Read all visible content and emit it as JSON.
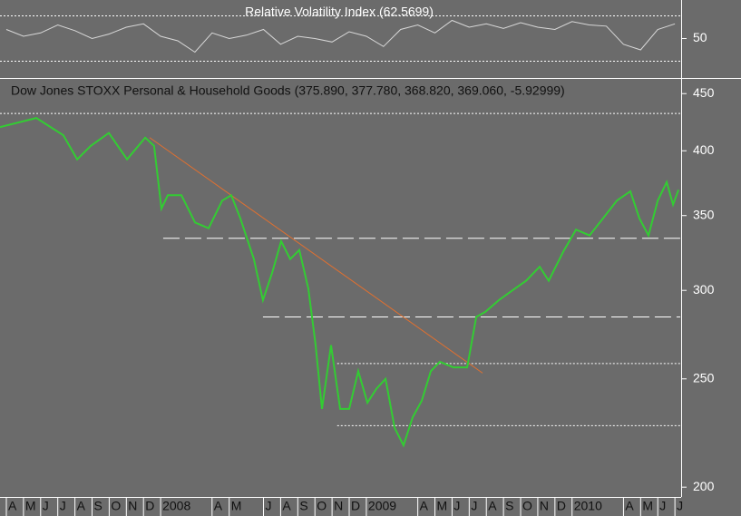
{
  "chart_data": [
    {
      "type": "line",
      "title": "Relative Volatility Index (62.5699)",
      "xlim": [
        -0.37,
        39.31
      ],
      "ylim": [
        16,
        84
      ],
      "yticks": [
        50
      ],
      "hlines": [
        {
          "value": 70,
          "from": -0.37,
          "style": "dotted"
        },
        {
          "value": 30,
          "from": -0.37,
          "style": "dotted"
        }
      ],
      "series": [
        {
          "color": "#d8d8d8",
          "x": [
            0,
            1,
            2,
            3,
            4,
            5,
            6,
            7,
            8,
            9,
            10,
            11,
            12,
            13,
            14,
            15,
            16,
            17,
            18,
            19,
            20,
            21,
            22,
            23,
            24,
            25,
            26,
            27,
            28,
            29,
            30,
            31,
            32,
            33,
            34,
            35,
            36,
            37,
            38,
            39
          ],
          "values": [
            58,
            52,
            55,
            62,
            57,
            50,
            54,
            60,
            63,
            52,
            48,
            38,
            55,
            50,
            53,
            58,
            45,
            52,
            50,
            47,
            56,
            52,
            43,
            58,
            62,
            55,
            66,
            60,
            63,
            59,
            64,
            60,
            58,
            65,
            62,
            61,
            45,
            40,
            58,
            63
          ]
        }
      ]
    },
    {
      "type": "line",
      "title": "Dow Jones STOXX Personal & Household Goods (375.890, 377.780, 368.820, 369.060, -5.92999)",
      "log_scale": true,
      "xlim": [
        -0.37,
        39.31
      ],
      "ylim": [
        196,
        463
      ],
      "yticks": [
        200,
        250,
        300,
        350,
        400,
        450
      ],
      "xticks": [
        {
          "value": 0,
          "label": "A"
        },
        {
          "value": 1,
          "label": "M"
        },
        {
          "value": 2,
          "label": "J"
        },
        {
          "value": 3,
          "label": "J"
        },
        {
          "value": 4,
          "label": "A"
        },
        {
          "value": 5,
          "label": "S"
        },
        {
          "value": 6,
          "label": "O"
        },
        {
          "value": 7,
          "label": "N"
        },
        {
          "value": 8,
          "label": "D"
        },
        {
          "value": 9,
          "label": "2008"
        },
        {
          "value": 12,
          "label": "A"
        },
        {
          "value": 13,
          "label": "M"
        },
        {
          "value": 15,
          "label": "J"
        },
        {
          "value": 16,
          "label": "A"
        },
        {
          "value": 17,
          "label": "S"
        },
        {
          "value": 18,
          "label": "O"
        },
        {
          "value": 19,
          "label": "N"
        },
        {
          "value": 20,
          "label": "D"
        },
        {
          "value": 21,
          "label": "2009"
        },
        {
          "value": 24,
          "label": "A"
        },
        {
          "value": 25,
          "label": "M"
        },
        {
          "value": 26,
          "label": "J"
        },
        {
          "value": 27,
          "label": "J"
        },
        {
          "value": 28,
          "label": "A"
        },
        {
          "value": 29,
          "label": "S"
        },
        {
          "value": 30,
          "label": "O"
        },
        {
          "value": 31,
          "label": "N"
        },
        {
          "value": 32,
          "label": "D"
        },
        {
          "value": 33,
          "label": "2010"
        },
        {
          "value": 36,
          "label": "A"
        },
        {
          "value": 37,
          "label": "M"
        },
        {
          "value": 38,
          "label": "J"
        },
        {
          "value": 39,
          "label": "J"
        }
      ],
      "hlines": [
        {
          "value": 432,
          "from": -0.37,
          "style": "dotted"
        },
        {
          "value": 334,
          "from": 9.15,
          "style": "dashed"
        },
        {
          "value": 284,
          "from": 14.97,
          "style": "dashed"
        },
        {
          "value": 258,
          "from": 19.3,
          "style": "dotted"
        },
        {
          "value": 227,
          "from": 19.3,
          "style": "dotted"
        }
      ],
      "trendlines": [
        {
          "x": [
            8.36,
            27.78
          ],
          "values": [
            411,
            253
          ],
          "color": "#e07030"
        }
      ],
      "series": [
        {
          "color": "#33cc33",
          "x": [
            -0.37,
            1.75,
            3.33,
            4.13,
            4.92,
            5.98,
            7.04,
            8.1,
            8.62,
            9.05,
            9.42,
            10.21,
            11.01,
            11.8,
            12.59,
            13.12,
            13.65,
            14.44,
            14.97,
            15.5,
            16.03,
            16.56,
            17.09,
            17.62,
            18.04,
            18.41,
            18.94,
            19.47,
            20,
            20.53,
            21.06,
            21.59,
            22.12,
            22.65,
            23.17,
            23.7,
            24.23,
            24.76,
            25.29,
            26.08,
            26.88,
            27.41,
            27.94,
            28.73,
            29.52,
            30.32,
            31.11,
            31.64,
            32.49,
            33.23,
            34.02,
            34.81,
            35.61,
            36.4,
            36.93,
            37.46,
            38,
            38.52,
            38.89,
            39.21
          ],
          "values": [
            420,
            428,
            413,
            393,
            404,
            415,
            393,
            411,
            404,
            355,
            365,
            365,
            345,
            341,
            361,
            365,
            348,
            320,
            294,
            311,
            332,
            320,
            326,
            301,
            268,
            235,
            268,
            235,
            235,
            254,
            238,
            245,
            250,
            226,
            218,
            231,
            239,
            254,
            259,
            256,
            256,
            284,
            287,
            294,
            300,
            306,
            315,
            306,
            325,
            340,
            336,
            348,
            361,
            368,
            348,
            336,
            361,
            375,
            358,
            369.06
          ]
        }
      ]
    }
  ]
}
